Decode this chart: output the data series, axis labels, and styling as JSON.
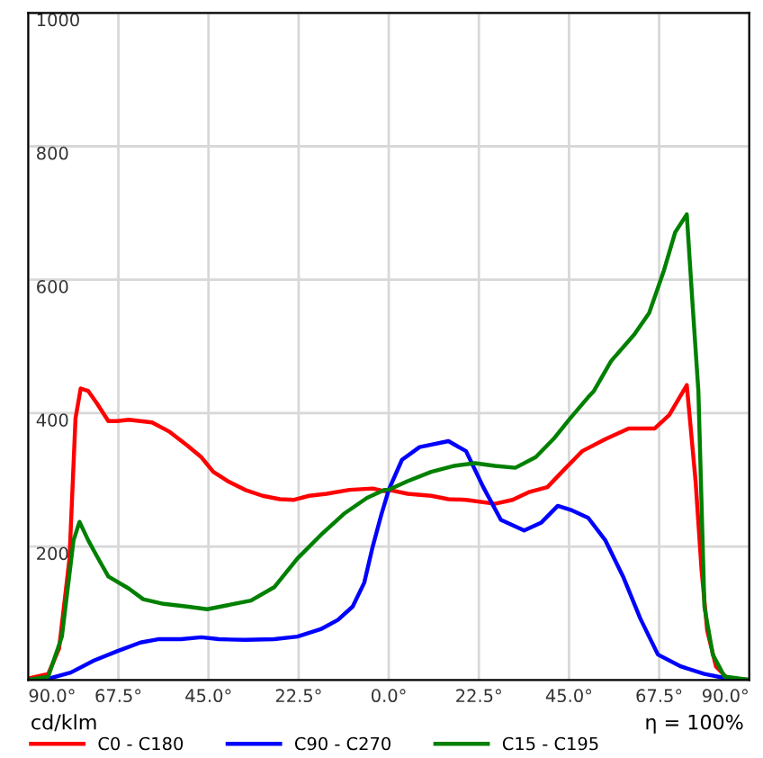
{
  "chart_data": {
    "type": "line",
    "xlim": [
      -90,
      90
    ],
    "ylim": [
      0,
      1000
    ],
    "xticks": [
      {
        "value": -90,
        "label": "90.0°"
      },
      {
        "value": -67.5,
        "label": "67.5°"
      },
      {
        "value": -45,
        "label": "45.0°"
      },
      {
        "value": -22.5,
        "label": "22.5°"
      },
      {
        "value": 0,
        "label": "0.0°"
      },
      {
        "value": 22.5,
        "label": "22.5°"
      },
      {
        "value": 45,
        "label": "45.0°"
      },
      {
        "value": 67.5,
        "label": "67.5°"
      },
      {
        "value": 90,
        "label": "90.0°"
      }
    ],
    "yticks": [
      200,
      400,
      600,
      800,
      1000
    ],
    "grid": true,
    "legend": "bottom",
    "annotations": [
      "cd/klm",
      "η = 100%"
    ],
    "series": [
      {
        "name": "C0 - C180",
        "color": "#ff0000",
        "x": [
          -90,
          -85,
          -82.3,
          -79.7,
          -78.2,
          -76.9,
          -75,
          -72.9,
          -70,
          -67.8,
          -64.9,
          -59.1,
          -54.7,
          -50.4,
          -46.8,
          -43.8,
          -40.2,
          -35.9,
          -31.5,
          -27.2,
          -23.6,
          -19.9,
          -15.5,
          -9.8,
          -4,
          -1,
          0,
          4.7,
          10.6,
          14.9,
          19.3,
          26.5,
          30.9,
          35.2,
          39.6,
          43.9,
          48.3,
          54.1,
          59.9,
          66.4,
          70,
          74.4,
          76.6,
          78.1,
          79.5,
          81.7,
          84.6,
          90
        ],
        "values": [
          2,
          9,
          47,
          182,
          392,
          437,
          433,
          415,
          388,
          388,
          390,
          386,
          372,
          352,
          334,
          312,
          298,
          285,
          276,
          271,
          270,
          276,
          279,
          285,
          287,
          283,
          285,
          279,
          276,
          271,
          270,
          264,
          270,
          282,
          289,
          316,
          343,
          361,
          377,
          377,
          397,
          442,
          298,
          164,
          74,
          20,
          2,
          0
        ]
      },
      {
        "name": "C90 - C270",
        "color": "#0000ff",
        "x": [
          -90,
          -85,
          -79.4,
          -73.6,
          -67.8,
          -62,
          -57.6,
          -51.9,
          -46.8,
          -42.4,
          -35.9,
          -28.6,
          -22.8,
          -17,
          -12.7,
          -9,
          -6.1,
          -4,
          -1.8,
          0,
          3.3,
          7.7,
          14.9,
          19.3,
          23.6,
          28,
          33.8,
          38.1,
          42.2,
          45.4,
          49.8,
          54.1,
          58.5,
          62.8,
          67.2,
          73,
          78.8,
          84.6,
          90
        ],
        "values": [
          0,
          2,
          11,
          29,
          43,
          56,
          61,
          61,
          64,
          61,
          60,
          61,
          65,
          76,
          90,
          110,
          146,
          200,
          249,
          285,
          330,
          349,
          358,
          343,
          289,
          240,
          224,
          236,
          261,
          255,
          243,
          209,
          155,
          92,
          38,
          20,
          9,
          2,
          0
        ]
      },
      {
        "name": "C15 - C195",
        "color": "#008000",
        "x": [
          -90,
          -85,
          -81.6,
          -78.7,
          -77.2,
          -75,
          -72.9,
          -70,
          -64.9,
          -61.3,
          -56.2,
          -50.4,
          -45.3,
          -40.2,
          -34.4,
          -28.6,
          -22.8,
          -17,
          -11.2,
          -5.4,
          -1,
          0,
          4.7,
          10.6,
          16.4,
          21.5,
          26.5,
          31.6,
          36.7,
          41.1,
          45.4,
          49.8,
          51.2,
          55.5,
          61.3,
          65,
          68.6,
          71.5,
          74.4,
          75.8,
          77.3,
          78.8,
          80.9,
          83.8,
          90
        ],
        "values": [
          0,
          5,
          65,
          209,
          237,
          209,
          186,
          155,
          137,
          121,
          114,
          110,
          106,
          112,
          119,
          139,
          182,
          217,
          249,
          273,
          285,
          285,
          298,
          312,
          321,
          325,
          321,
          318,
          334,
          361,
          393,
          424,
          433,
          478,
          518,
          550,
          612,
          671,
          698,
          567,
          433,
          110,
          38,
          5,
          0
        ]
      }
    ]
  }
}
